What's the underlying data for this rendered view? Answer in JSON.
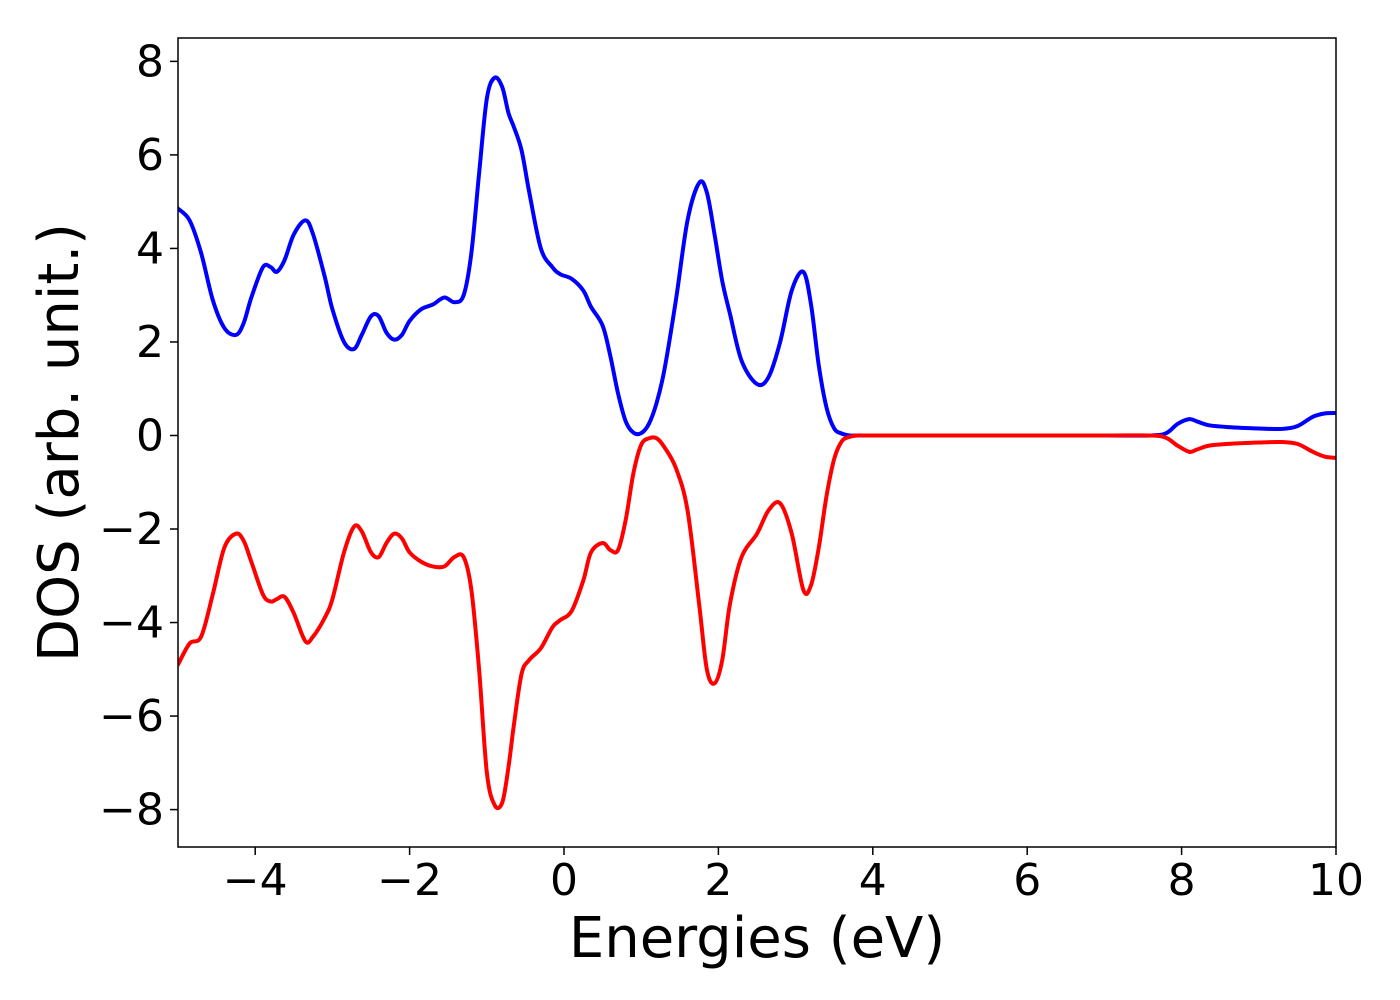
{
  "chart_data": {
    "type": "line",
    "xlabel": "Energies (eV)",
    "ylabel": "DOS (arb. unit.)",
    "xlim": [
      -5,
      10
    ],
    "ylim": [
      -8.8,
      8.5
    ],
    "xticks": [
      -4,
      -2,
      0,
      2,
      4,
      6,
      8,
      10
    ],
    "yticks": [
      -8,
      -6,
      -4,
      -2,
      0,
      2,
      4,
      6,
      8
    ],
    "xtick_labels": [
      "−4",
      "−2",
      "0",
      "2",
      "4",
      "6",
      "8",
      "10"
    ],
    "ytick_labels": [
      "−8",
      "−6",
      "−4",
      "−2",
      "0",
      "2",
      "4",
      "6",
      "8"
    ],
    "grid": false,
    "series": [
      {
        "color": "#0000ff",
        "x": [
          -5.0,
          -4.85,
          -4.7,
          -4.55,
          -4.4,
          -4.25,
          -4.15,
          -4.05,
          -3.9,
          -3.8,
          -3.72,
          -3.62,
          -3.5,
          -3.35,
          -3.25,
          -3.1,
          -3.0,
          -2.85,
          -2.72,
          -2.62,
          -2.5,
          -2.4,
          -2.3,
          -2.2,
          -2.1,
          -2.0,
          -1.85,
          -1.7,
          -1.55,
          -1.42,
          -1.3,
          -1.2,
          -1.1,
          -1.0,
          -0.9,
          -0.8,
          -0.72,
          -0.65,
          -0.55,
          -0.45,
          -0.3,
          -0.15,
          -0.05,
          0.1,
          0.25,
          0.35,
          0.5,
          0.6,
          0.7,
          0.8,
          0.9,
          1.0,
          1.1,
          1.2,
          1.3,
          1.45,
          1.6,
          1.75,
          1.85,
          1.95,
          2.05,
          2.15,
          2.3,
          2.5,
          2.65,
          2.8,
          2.95,
          3.1,
          3.2,
          3.3,
          3.4,
          3.5,
          3.6,
          3.7,
          3.8,
          3.9,
          4.0,
          5.0,
          6.0,
          7.0,
          7.6,
          7.8,
          7.95,
          8.1,
          8.2,
          8.35,
          8.6,
          9.0,
          9.3,
          9.5,
          9.7,
          9.85,
          10.0
        ],
        "values": [
          4.85,
          4.6,
          3.9,
          2.9,
          2.3,
          2.15,
          2.4,
          2.95,
          3.6,
          3.6,
          3.5,
          3.75,
          4.3,
          4.6,
          4.3,
          3.4,
          2.7,
          2.0,
          1.85,
          2.15,
          2.55,
          2.55,
          2.2,
          2.05,
          2.15,
          2.45,
          2.7,
          2.8,
          2.95,
          2.85,
          3.0,
          3.9,
          5.6,
          7.2,
          7.65,
          7.45,
          6.9,
          6.6,
          6.1,
          5.2,
          4.0,
          3.6,
          3.45,
          3.35,
          3.1,
          2.75,
          2.35,
          1.7,
          0.9,
          0.3,
          0.06,
          0.05,
          0.25,
          0.7,
          1.4,
          2.9,
          4.6,
          5.4,
          5.2,
          4.3,
          3.3,
          2.6,
          1.6,
          1.1,
          1.25,
          2.0,
          3.1,
          3.5,
          2.8,
          1.5,
          0.6,
          0.15,
          0.04,
          0.0,
          0.0,
          0.0,
          0.0,
          0.0,
          0.0,
          0.0,
          0.0,
          0.05,
          0.25,
          0.35,
          0.3,
          0.22,
          0.18,
          0.15,
          0.14,
          0.2,
          0.4,
          0.47,
          0.48
        ]
      },
      {
        "color": "#ff0000",
        "x": [
          -5.0,
          -4.85,
          -4.7,
          -4.55,
          -4.4,
          -4.25,
          -4.15,
          -4.05,
          -3.9,
          -3.8,
          -3.72,
          -3.62,
          -3.5,
          -3.35,
          -3.25,
          -3.1,
          -3.0,
          -2.85,
          -2.72,
          -2.62,
          -2.5,
          -2.4,
          -2.3,
          -2.2,
          -2.1,
          -2.0,
          -1.85,
          -1.7,
          -1.55,
          -1.42,
          -1.3,
          -1.2,
          -1.1,
          -1.0,
          -0.9,
          -0.8,
          -0.72,
          -0.65,
          -0.55,
          -0.45,
          -0.3,
          -0.15,
          -0.05,
          0.1,
          0.25,
          0.35,
          0.5,
          0.6,
          0.7,
          0.8,
          0.9,
          1.0,
          1.1,
          1.2,
          1.3,
          1.45,
          1.6,
          1.75,
          1.85,
          1.95,
          2.05,
          2.15,
          2.3,
          2.5,
          2.65,
          2.8,
          2.95,
          3.1,
          3.2,
          3.3,
          3.4,
          3.5,
          3.6,
          3.7,
          3.8,
          3.9,
          4.0,
          5.0,
          6.0,
          7.0,
          7.6,
          7.8,
          7.95,
          8.1,
          8.2,
          8.35,
          8.6,
          9.0,
          9.3,
          9.5,
          9.7,
          9.85,
          10.0
        ],
        "values": [
          -4.9,
          -4.45,
          -4.3,
          -3.4,
          -2.4,
          -2.1,
          -2.25,
          -2.7,
          -3.4,
          -3.55,
          -3.5,
          -3.45,
          -3.8,
          -4.4,
          -4.3,
          -3.9,
          -3.5,
          -2.5,
          -1.95,
          -2.05,
          -2.5,
          -2.6,
          -2.3,
          -2.1,
          -2.2,
          -2.5,
          -2.7,
          -2.8,
          -2.8,
          -2.6,
          -2.6,
          -3.3,
          -5.0,
          -7.2,
          -7.9,
          -7.85,
          -7.1,
          -6.2,
          -5.1,
          -4.8,
          -4.55,
          -4.1,
          -3.95,
          -3.75,
          -3.1,
          -2.5,
          -2.3,
          -2.45,
          -2.45,
          -1.8,
          -0.8,
          -0.2,
          -0.06,
          -0.06,
          -0.25,
          -0.7,
          -1.6,
          -3.6,
          -5.0,
          -5.3,
          -4.8,
          -3.6,
          -2.6,
          -2.1,
          -1.6,
          -1.45,
          -2.1,
          -3.3,
          -3.2,
          -2.4,
          -1.3,
          -0.5,
          -0.12,
          -0.03,
          0.0,
          0.0,
          0.0,
          0.0,
          0.0,
          0.0,
          0.0,
          -0.05,
          -0.22,
          -0.35,
          -0.3,
          -0.22,
          -0.18,
          -0.15,
          -0.14,
          -0.18,
          -0.35,
          -0.45,
          -0.48
        ]
      }
    ]
  }
}
